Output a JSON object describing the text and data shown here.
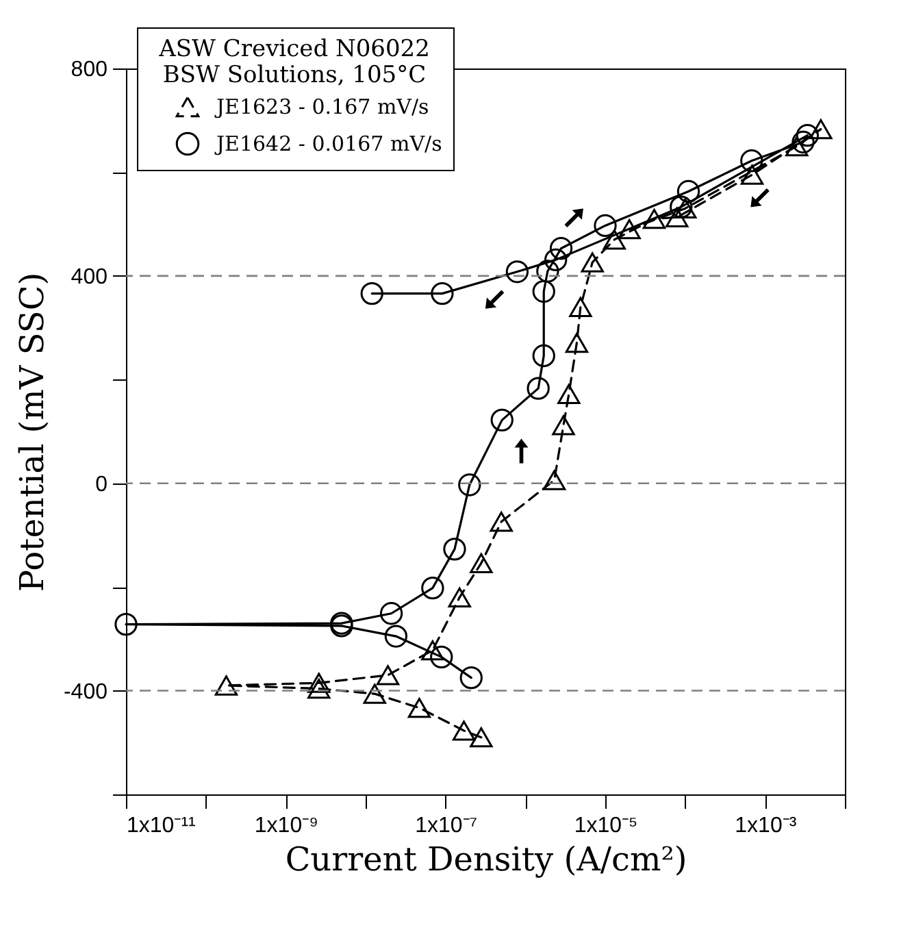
{
  "chart_data": {
    "type": "line",
    "xlabel": "Current Density (A/cm²)",
    "ylabel": "Potential (mV SSC)",
    "legend_title": "ASW Creviced N06022\nBSW Solutions, 105°C",
    "legend": "top left",
    "log": "x",
    "xlim": [
      1e-11,
      0.01
    ],
    "xticks": [
      {
        "value": 1e-11,
        "label": "1x10⁻¹¹"
      },
      {
        "value": 1e-10,
        "label": null
      },
      {
        "value": 1e-09,
        "label": "1x10⁻⁹"
      },
      {
        "value": 1e-08,
        "label": null
      },
      {
        "value": 1e-07,
        "label": "1x10⁻⁷"
      },
      {
        "value": 1e-06,
        "label": null
      },
      {
        "value": 1e-05,
        "label": "1x10⁻⁵"
      },
      {
        "value": 0.0001,
        "label": null
      },
      {
        "value": 0.001,
        "label": "1x10⁻³"
      },
      {
        "value": 0.01,
        "label": null
      }
    ],
    "ylim": [
      -600,
      800
    ],
    "yticks": [
      800,
      {
        "value": 600,
        "label": null
      },
      400,
      {
        "value": 200,
        "label": null
      },
      0,
      {
        "value": -200,
        "label": null
      },
      -400,
      {
        "value": -600,
        "label": null
      }
    ],
    "ref_lines": [
      {
        "axis": "y",
        "value": 400,
        "color": "#808080",
        "line_style": "dashed"
      },
      {
        "axis": "y",
        "value": 0,
        "color": "#808080",
        "line_style": "dashed"
      },
      {
        "axis": "y",
        "value": -400,
        "color": "#808080",
        "line_style": "dashed"
      }
    ],
    "series": [
      {
        "name": "JE1623 - 0.167 mV/s",
        "color": "#000000",
        "marker": "triangle",
        "line_style": "dashed",
        "x": [
          2.8e-07,
          1.7e-07,
          4.7e-08,
          1.3e-08,
          2.6e-09,
          1.8e-10,
          2.6e-09,
          1.9e-08,
          6.9e-08,
          1.5e-07,
          2.8e-07,
          5e-07,
          2.3e-06,
          3e-06,
          3.5e-06,
          4.4e-06,
          4.9e-06,
          6.9e-06,
          1.3e-05,
          4.1e-05,
          7.9e-05,
          0.00069,
          0.005,
          0.0025,
          0.0001,
          2e-05
        ],
        "values": [
          -490,
          -477,
          -433,
          -406,
          -396,
          -390,
          -385,
          -370,
          -322,
          -220,
          -154,
          -74,
          6,
          112,
          172,
          271,
          340,
          426,
          470,
          510,
          513,
          595,
          683,
          650,
          530,
          490
        ]
      },
      {
        "name": "JE1642 - 0.0167 mV/s",
        "color": "#000000",
        "marker": "circle",
        "line_style": "solid",
        "x": [
          2.1e-07,
          8.9e-08,
          2.4e-08,
          5e-09,
          1e-11,
          5e-09,
          2.1e-08,
          6.9e-08,
          1.3e-07,
          2e-07,
          5.1e-07,
          1.45e-06,
          1.7e-06,
          1.7e-06,
          1.9e-06,
          2.8e-06,
          1e-05,
          0.00011,
          0.00068,
          0.003,
          0.0034,
          8.9e-05,
          2.4e-06,
          7.9e-07,
          9.1e-08,
          1.2e-08
        ],
        "values": [
          -375,
          -335,
          -295,
          -275,
          -272,
          -270,
          -251,
          -202,
          -127,
          -3,
          122,
          183,
          246,
          370,
          409,
          453,
          497,
          563,
          622,
          658,
          671,
          533,
          431,
          408,
          366,
          366
        ]
      }
    ]
  }
}
